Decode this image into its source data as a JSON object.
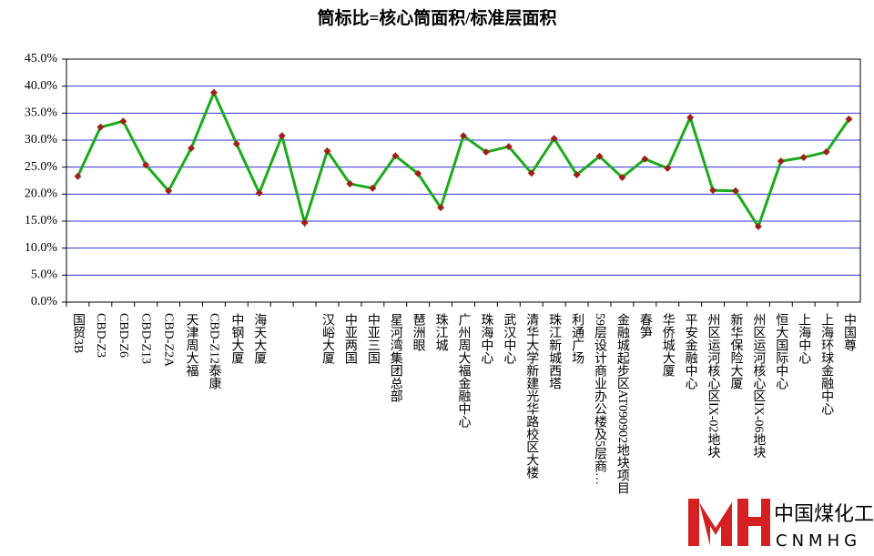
{
  "chart_data": {
    "type": "line",
    "title": "筒标比=核心筒面积/标准层面积",
    "categories": [
      "国贸3B",
      "CBD-Z3",
      "CBD-Z6",
      "CBD-Z13",
      "CBD-Z2A",
      "天津周大福",
      "CBD-Z12泰康",
      "中钢大厦",
      "海天大厦",
      null,
      null,
      "汉峪大厦",
      "中亚两国",
      "中亚三国",
      "星河湾集团总部",
      "琶洲眼",
      "珠江城",
      "广州周大福金融中心",
      "珠海中心",
      "武汉中心",
      "清华大学新建光华路校区大楼",
      "珠江新城西塔",
      "利通广场",
      "59层设计商业办公楼及5层商…",
      "金融城起步区AT090902地块项目",
      "春笋",
      "华侨城大厦",
      "平安金融中心",
      "州区运河核心区IX-02地块",
      "新华保险大厦",
      "州区运河核心区IX-06地块",
      "恒大国际中心",
      "上海中心",
      "上海环球金融中心",
      "中国尊"
    ],
    "series": [
      {
        "color": "#1aaa1a",
        "marker_color": "#a02018",
        "values": [
          23.3,
          32.4,
          33.5,
          25.4,
          20.6,
          28.5,
          38.8,
          29.3,
          20.2,
          30.8,
          14.7,
          28.0,
          21.9,
          21.1,
          27.1,
          23.8,
          17.5,
          30.8,
          27.8,
          28.8,
          23.9,
          30.3,
          23.6,
          27.0,
          23.1,
          26.5,
          24.8,
          34.2,
          20.7,
          20.6,
          14.0,
          26.1,
          26.8,
          27.8,
          33.9
        ]
      }
    ],
    "ylim": [
      0,
      45
    ],
    "yticks": [
      {
        "value": 0,
        "label": "0.0%"
      },
      {
        "value": 5,
        "label": "5.0%"
      },
      {
        "value": 10,
        "label": "10.0%"
      },
      {
        "value": 15,
        "label": "15.0%"
      },
      {
        "value": 20,
        "label": "20.0%"
      },
      {
        "value": 25,
        "label": "25.0%"
      },
      {
        "value": 30,
        "label": "30.0%"
      },
      {
        "value": 35,
        "label": "35.0%"
      },
      {
        "value": 40,
        "label": "40.0%"
      },
      {
        "value": 45,
        "label": "45.0%"
      }
    ],
    "grid": true,
    "grid_color": "#3030e0"
  },
  "watermark": {
    "name": "中国煤化工",
    "code": "CNMHG"
  }
}
